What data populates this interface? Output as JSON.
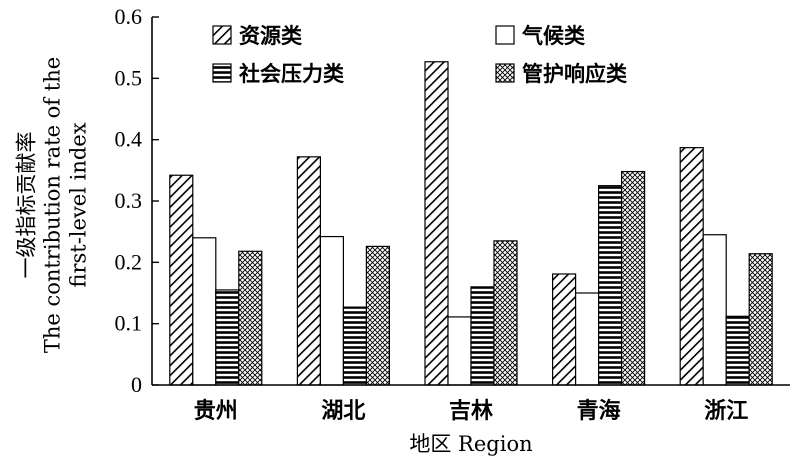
{
  "chart_data": {
    "type": "bar",
    "categories": [
      "贵州",
      "湖北",
      "吉林",
      "青海",
      "浙江"
    ],
    "series": [
      {
        "name": "资源类",
        "pattern": "diagonal",
        "values": [
          0.342,
          0.372,
          0.527,
          0.181,
          0.387
        ]
      },
      {
        "name": "气候类",
        "pattern": "none",
        "values": [
          0.24,
          0.242,
          0.111,
          0.15,
          0.245
        ]
      },
      {
        "name": "社会压力类",
        "pattern": "horizontal",
        "values": [
          0.155,
          0.127,
          0.16,
          0.325,
          0.112
        ]
      },
      {
        "name": "管护响应类",
        "pattern": "crosshatch",
        "values": [
          0.218,
          0.226,
          0.235,
          0.348,
          0.214
        ]
      }
    ],
    "xlabel": "地区 Region",
    "ylabel_lines": [
      "一级指标贡献率",
      "The contribution rate of the",
      "first-level index"
    ],
    "ylim": [
      0,
      0.6
    ],
    "yticks": [
      "0",
      "0.1",
      "0.2",
      "0.3",
      "0.4",
      "0.5",
      "0.6"
    ],
    "legend_position": "top",
    "grid": false
  }
}
